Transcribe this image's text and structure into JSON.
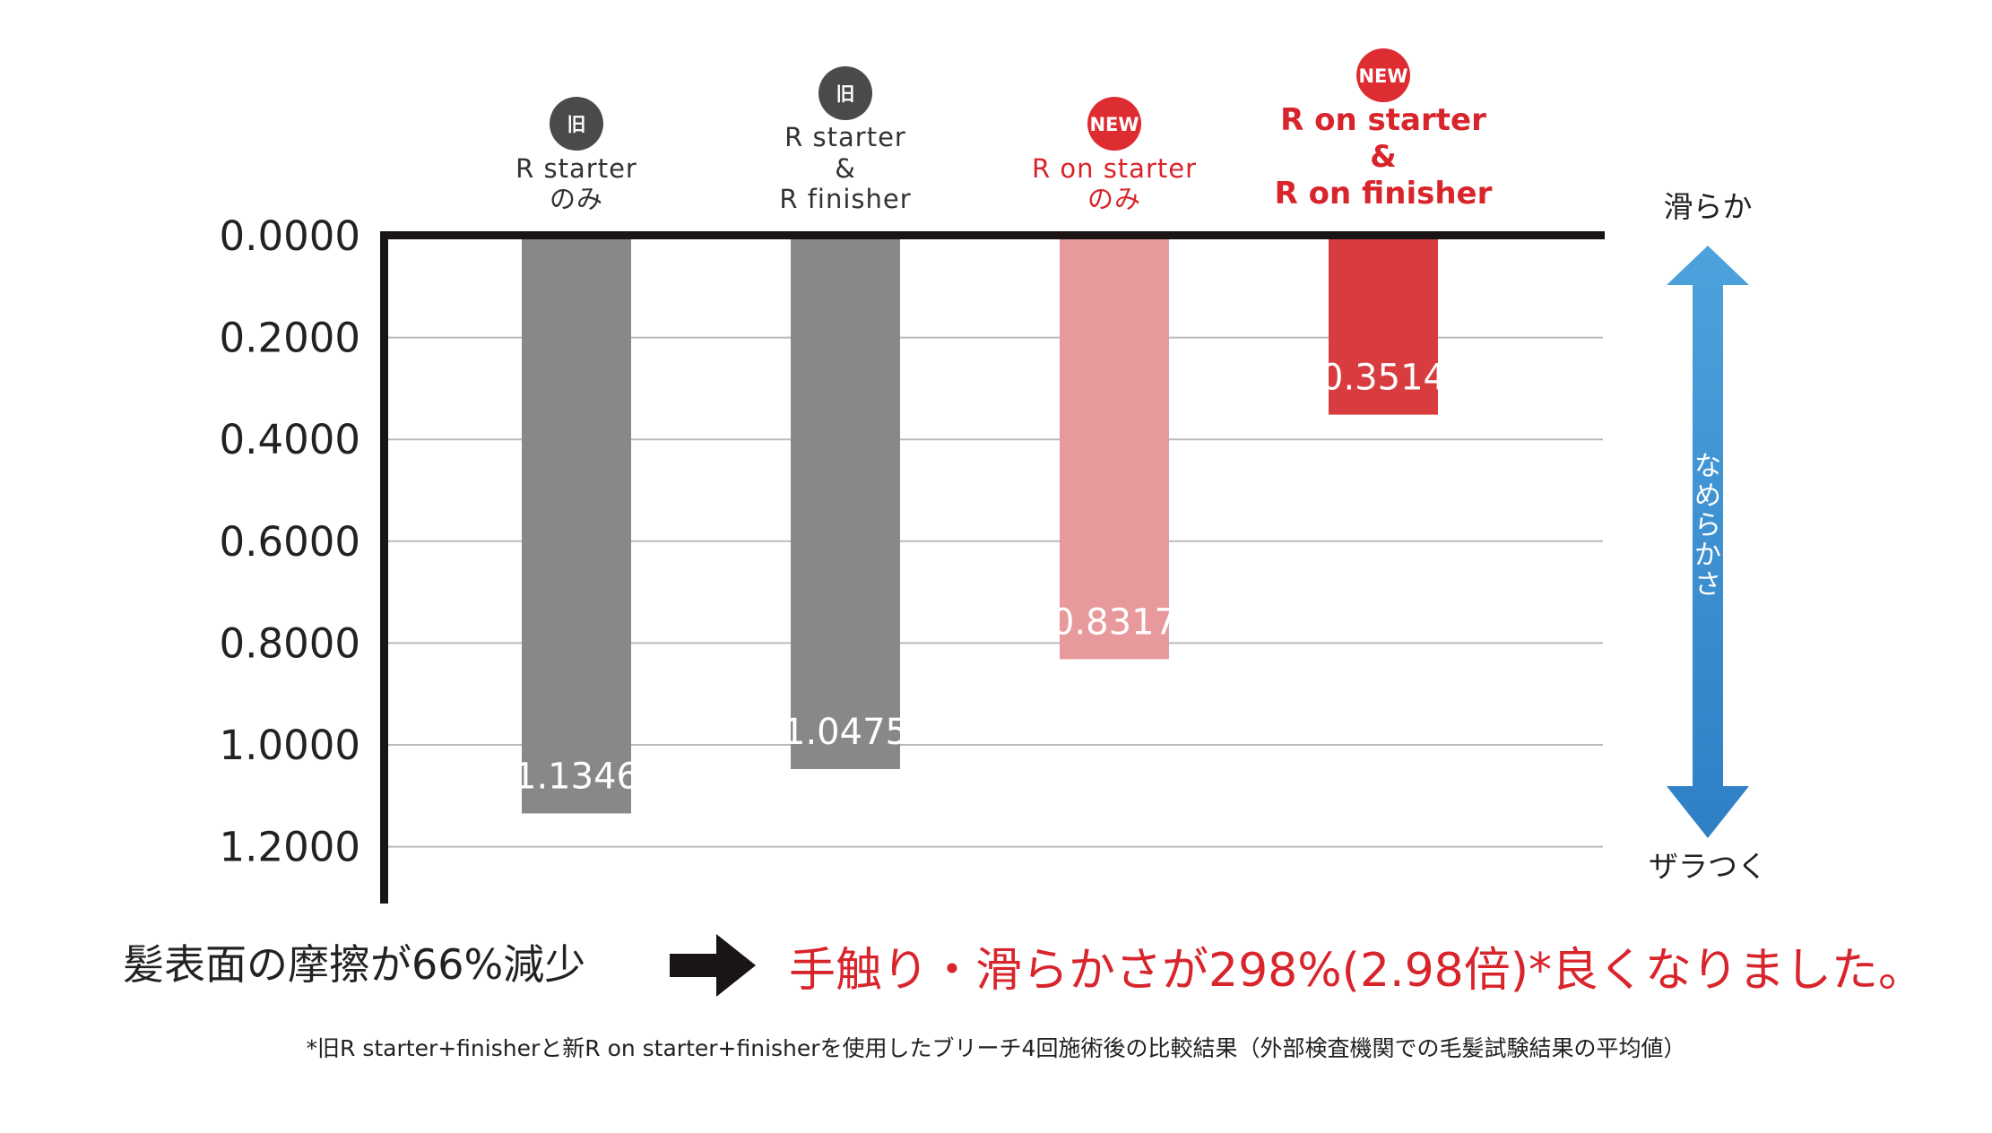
{
  "chart_data": {
    "type": "bar",
    "orientation": "vertical-inverted",
    "categories": [
      {
        "badge": "旧",
        "lines": [
          "R starter",
          "のみ"
        ]
      },
      {
        "badge": "旧",
        "lines": [
          "R starter",
          "&",
          "R finisher"
        ]
      },
      {
        "badge": "NEW",
        "lines": [
          "R on starter",
          "のみ"
        ]
      },
      {
        "badge": "NEW",
        "lines": [
          "R on starter",
          "&",
          "R on finisher"
        ]
      }
    ],
    "values": [
      1.1346,
      1.0475,
      0.8317,
      0.3514
    ],
    "value_labels": [
      "1.1346",
      "1.0475",
      "0.8317",
      "0.3514"
    ],
    "ylim": [
      0,
      1.3
    ],
    "y_ticks": [
      0,
      0.2,
      0.4,
      0.6,
      0.8,
      1.0,
      1.2
    ],
    "y_tick_labels": [
      "0.0000",
      "0.2000",
      "0.4000",
      "0.6000",
      "0.8000",
      "1.0000",
      "1.2000"
    ],
    "grid": true,
    "colors": {
      "old_bar": "#888888",
      "new_light_bar": "#e8999b",
      "new_bar": "#d93c3f",
      "old_badge": "#4a4a4a",
      "new_badge": "#dd2c32",
      "old_text": "#333333",
      "new_text": "#d8242b"
    },
    "scale_indicator": {
      "top_label": "滑らか",
      "bottom_label": "ザラつく",
      "axis_label": "なめらかさ",
      "color_top": "#4da2dc",
      "color_bottom": "#2f7fc5"
    }
  },
  "summary": {
    "left": "髪表面の摩擦が66%減少",
    "right": "手触り・滑らかさが298%(2.98倍)*良くなりました。"
  },
  "footnote": "*旧R starter+finisherと新R on starter+finisherを使用したブリーチ4回施術後の比較結果（外部検査機関での毛髪試験結果の平均値）"
}
